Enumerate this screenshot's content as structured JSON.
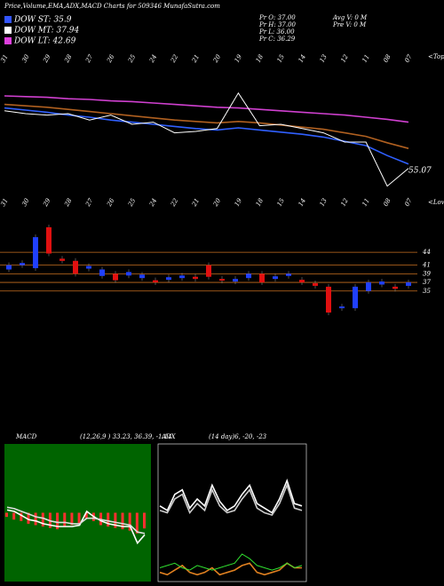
{
  "header": {
    "title": "Price,Volume,EMA,ADX,MACD Charts for 509346  MunafaSutra.com"
  },
  "legend": [
    {
      "name": "DOW ST: 35.9",
      "color": "#3355ff"
    },
    {
      "name": "DOW MT: 37.94",
      "color": "#ffffff"
    },
    {
      "name": "DOW LT: 42.69",
      "color": "#e040e0"
    }
  ],
  "stats": [
    "Pr  O: 37.00",
    "Pr  H: 37.00",
    "Pr  L: 36.00",
    "Pr  C: 36.29",
    "Avg V: 0  M",
    "Pre  V: 0  M"
  ],
  "chart_data": [
    {
      "type": "line",
      "categories": [
        "31",
        "30",
        "29",
        "28",
        "27",
        "26",
        "25",
        "24",
        "22",
        "21",
        "20",
        "19",
        "18",
        "15",
        "14",
        "13",
        "12",
        "11",
        "08",
        "07"
      ],
      "ylim": [
        30,
        50
      ],
      "annotations": [
        "55.07",
        "<Tops",
        "<Lows"
      ],
      "series": [
        {
          "name": "EMA LT",
          "color": "#d040d0",
          "values": [
            44.0,
            43.9,
            43.8,
            43.6,
            43.5,
            43.3,
            43.2,
            43.0,
            42.8,
            42.6,
            42.4,
            42.3,
            42.1,
            41.9,
            41.7,
            41.5,
            41.3,
            41.0,
            40.7,
            40.3
          ]
        },
        {
          "name": "EMA MT",
          "color": "#b06020",
          "values": [
            42.8,
            42.6,
            42.4,
            42.1,
            41.8,
            41.5,
            41.2,
            40.9,
            40.6,
            40.4,
            40.2,
            40.4,
            40.2,
            39.9,
            39.6,
            39.3,
            38.8,
            38.3,
            37.4,
            36.6
          ]
        },
        {
          "name": "EMA ST",
          "color": "#3060ff",
          "values": [
            42.3,
            42.0,
            41.7,
            41.3,
            41.0,
            40.6,
            40.3,
            40.0,
            39.7,
            39.4,
            39.2,
            39.5,
            39.2,
            38.9,
            38.6,
            38.2,
            37.6,
            37.0,
            35.6,
            34.4
          ]
        },
        {
          "name": "Close",
          "color": "#ffffff",
          "values": [
            41.9,
            41.5,
            41.3,
            41.5,
            40.6,
            41.3,
            40.0,
            40.3,
            38.8,
            39.0,
            39.4,
            44.4,
            39.8,
            40.0,
            39.4,
            38.8,
            37.5,
            37.5,
            31.3,
            33.8
          ]
        }
      ]
    },
    {
      "type": "candlestick",
      "ylim": [
        30,
        50
      ],
      "yticks": [
        44,
        41,
        39,
        37,
        35
      ],
      "grid_color": "#c87020",
      "open": [
        40.0,
        41.0,
        40.3,
        49.8,
        42.5,
        42.0,
        40.2,
        38.5,
        39.0,
        38.6,
        38.0,
        37.5,
        37.6,
        38.0,
        38.3,
        41.0,
        37.8,
        37.2,
        38.0,
        39.0,
        37.8,
        38.5,
        37.6,
        36.8,
        36.0,
        31.0,
        31.0,
        35.0,
        36.5,
        36.0,
        36.2
      ],
      "close": [
        41.0,
        41.5,
        47.5,
        43.7,
        42.0,
        39.0,
        40.8,
        40.0,
        37.5,
        39.4,
        38.8,
        37.0,
        38.2,
        38.6,
        37.8,
        38.3,
        37.4,
        37.8,
        39.0,
        37.0,
        38.4,
        39.0,
        37.0,
        36.2,
        30.0,
        31.4,
        36.0,
        37.0,
        37.2,
        35.5,
        37.0
      ]
    },
    {
      "type": "macd",
      "title": "MACD",
      "subtitle": "(12,26,9 ) 33.23,  36.39,  -1.14",
      "ylim": [
        -5,
        5
      ],
      "values": [
        -0.3,
        -0.5,
        -0.6,
        -0.8,
        -0.9,
        -1.0,
        -1.1,
        -1.2,
        -1.0,
        -0.9,
        -0.8,
        -0.4,
        -0.6,
        -0.9,
        -1.0,
        -1.1,
        -1.2,
        -1.3,
        -1.5,
        -1.14
      ],
      "series": [
        {
          "name": "MACD",
          "color": "#ffffff",
          "values": [
            0.2,
            0.1,
            -0.2,
            -0.5,
            -0.6,
            -0.8,
            -0.9,
            -1.0,
            -1.0,
            -1.0,
            -0.9,
            0.1,
            -0.3,
            -0.6,
            -0.8,
            -0.9,
            -1.0,
            -1.0,
            -2.2,
            -1.6
          ]
        },
        {
          "name": "Signal",
          "color": "#dddddd",
          "values": [
            0.4,
            0.3,
            0.1,
            -0.1,
            -0.3,
            -0.4,
            -0.6,
            -0.7,
            -0.7,
            -0.8,
            -0.8,
            -0.4,
            -0.4,
            -0.5,
            -0.6,
            -0.7,
            -0.8,
            -0.9,
            -1.4,
            -1.5
          ]
        }
      ]
    },
    {
      "type": "adx",
      "title": "ADX",
      "subtitle": "(14   day)6,  -20,  -23",
      "ylim": [
        0,
        60
      ],
      "series": [
        {
          "name": "+DI",
          "color": "#ffffff",
          "values": [
            33,
            31,
            38,
            40,
            32,
            36,
            33,
            42,
            35,
            31,
            33,
            38,
            42,
            34,
            32,
            30,
            36,
            44,
            34,
            33
          ]
        },
        {
          "name": "-DI",
          "color": "#cccccc",
          "values": [
            31,
            30,
            36,
            38,
            30,
            34,
            31,
            40,
            33,
            30,
            31,
            36,
            40,
            32,
            30,
            29,
            34,
            42,
            32,
            31
          ]
        },
        {
          "name": "ADX",
          "color": "#e08020",
          "values": [
            4,
            3,
            5,
            7,
            4,
            3,
            4,
            6,
            3,
            4,
            5,
            7,
            8,
            4,
            3,
            4,
            5,
            8,
            6,
            6
          ]
        },
        {
          "name": "DX",
          "color": "#30e030",
          "values": [
            6,
            7,
            8,
            6,
            5,
            7,
            6,
            5,
            6,
            7,
            8,
            12,
            10,
            7,
            6,
            5,
            6,
            8,
            6,
            7
          ]
        }
      ]
    }
  ]
}
